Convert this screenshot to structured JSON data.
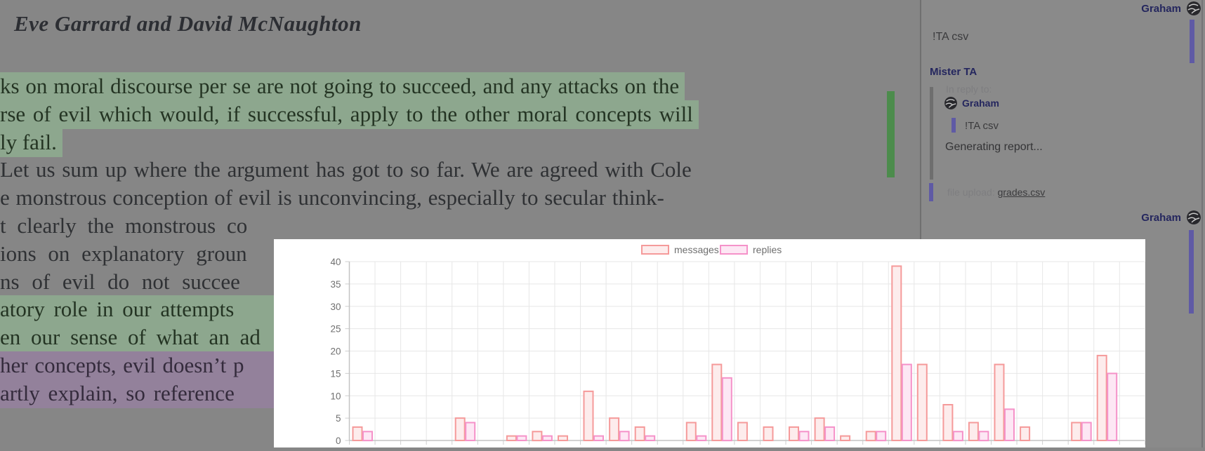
{
  "document": {
    "title": "Eve Garrard and David McNaughton",
    "lines": [
      {
        "text": "ks on moral discourse per se are not going to succeed, and any attacks on the",
        "highlight": "green",
        "cut": false,
        "ws": 1
      },
      {
        "text": "rse of evil which would, if successful, apply to the other moral concepts will",
        "highlight": "green",
        "cut": false,
        "ws": 3
      },
      {
        "text": "ly fail.",
        "highlight": "green",
        "cut": false,
        "ws": 0
      },
      {
        "text": "Let us sum up where the argument has got to so far. We are agreed with Cole",
        "highlight": "none",
        "cut": false,
        "ws": 2
      },
      {
        "text": "e monstrous conception of evil is unconvincing, especially to secular think-",
        "highlight": "none",
        "cut": false,
        "ws": 1
      },
      {
        "text": "t clearly the monstrous co",
        "highlight": "none",
        "cut": true,
        "ws": 8
      },
      {
        "text": "ions on explanatory groun",
        "highlight": "none",
        "cut": true,
        "ws": 9
      },
      {
        "text": "ns of evil do not succee",
        "highlight": "none",
        "cut": true,
        "ws": 10
      },
      {
        "text": "atory role in our attempts",
        "highlight": "green",
        "cut": true,
        "ws": 5
      },
      {
        "text": "en our sense of what an ad",
        "highlight": "green",
        "cut": true,
        "ws": 7
      },
      {
        "text": "her concepts, evil doesn’t p",
        "highlight": "purple",
        "cut": true,
        "ws": 2
      },
      {
        "text": "artly explain, so reference",
        "highlight": "purple",
        "cut": true,
        "ws": 4
      }
    ],
    "annotation_bar_color": "#4c8c4c"
  },
  "sidebar": {
    "accent_color": "#5f5aa5",
    "msg1": {
      "author": "Graham",
      "text": "!TA csv"
    },
    "msg2": {
      "heading": "Mister TA",
      "reply_label": "In reply to:",
      "reply_author": "Graham",
      "reply_quote": "!TA csv",
      "body": "Generating report...",
      "file_label": "file upload:",
      "file_name": "grades.csv"
    },
    "msg3": {
      "author": "Graham"
    }
  },
  "chart_data": {
    "type": "bar",
    "title": "",
    "legend_position": "top",
    "grid": true,
    "ylim": [
      0,
      40
    ],
    "yticks": [
      0,
      5,
      10,
      15,
      20,
      25,
      30,
      35,
      40
    ],
    "x_tick_labels_visible": false,
    "num_groups": 31,
    "series": [
      {
        "name": "messages",
        "border_color": "#f59a9a",
        "fill_color": "#fdecec",
        "values": [
          3,
          0,
          0,
          0,
          5,
          0,
          1,
          2,
          1,
          11,
          5,
          3,
          0,
          4,
          17,
          4,
          3,
          3,
          5,
          1,
          2,
          39,
          17,
          8,
          4,
          17,
          3,
          0,
          4,
          19,
          0
        ]
      },
      {
        "name": "replies",
        "border_color": "#f592c9",
        "fill_color": "#fde7f4",
        "values": [
          2,
          0,
          0,
          0,
          4,
          0,
          1,
          1,
          0,
          1,
          2,
          1,
          0,
          1,
          14,
          0,
          0,
          2,
          3,
          0,
          2,
          17,
          0,
          2,
          2,
          7,
          0,
          0,
          4,
          15,
          0
        ]
      }
    ]
  }
}
